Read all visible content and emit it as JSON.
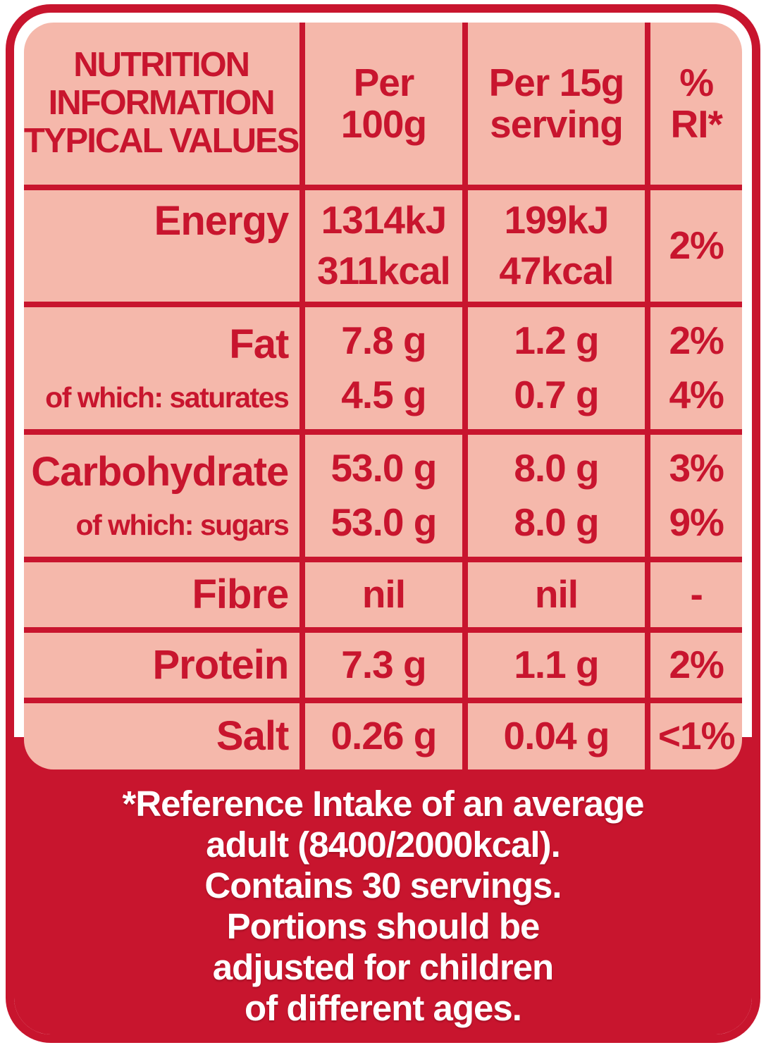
{
  "label": {
    "colors": {
      "red": "#c8152e",
      "pink": "#f5b8ab",
      "text_footer": "#ffffff"
    },
    "header": {
      "col1_lines": [
        "NUTRITION",
        "INFORMATION",
        "TYPICAL VALUES"
      ],
      "col2_lines": [
        "Per",
        "100g"
      ],
      "col3_lines": [
        "Per 15g",
        "serving"
      ],
      "col4_lines": [
        "%",
        "RI*"
      ]
    },
    "rows": [
      {
        "name": "energy",
        "label_lines": [
          "Energy"
        ],
        "per_100g": [
          "1314kJ",
          "311kcal"
        ],
        "per_serving": [
          "199kJ",
          "47kcal"
        ],
        "percent_ri": [
          "2%"
        ]
      },
      {
        "name": "fat",
        "label_lines": [
          "Fat",
          "of which: saturates"
        ],
        "per_100g": [
          "7.8 g",
          "4.5 g"
        ],
        "per_serving": [
          "1.2 g",
          "0.7 g"
        ],
        "percent_ri": [
          "2%",
          "4%"
        ]
      },
      {
        "name": "carbohydrate",
        "label_lines": [
          "Carbohydrate",
          "of which: sugars"
        ],
        "per_100g": [
          "53.0 g",
          "53.0 g"
        ],
        "per_serving": [
          "8.0 g",
          "8.0 g"
        ],
        "percent_ri": [
          "3%",
          "9%"
        ]
      },
      {
        "name": "fibre",
        "label_lines": [
          "Fibre"
        ],
        "per_100g": [
          "nil"
        ],
        "per_serving": [
          "nil"
        ],
        "percent_ri": [
          "-"
        ]
      },
      {
        "name": "protein",
        "label_lines": [
          "Protein"
        ],
        "per_100g": [
          "7.3 g"
        ],
        "per_serving": [
          "1.1 g"
        ],
        "percent_ri": [
          "2%"
        ]
      },
      {
        "name": "salt",
        "label_lines": [
          "Salt"
        ],
        "per_100g": [
          "0.26 g"
        ],
        "per_serving": [
          "0.04 g"
        ],
        "percent_ri": [
          "<1%"
        ]
      }
    ],
    "footnote_lines": [
      "*Reference Intake of an average",
      "adult (8400/2000kcal).",
      "Contains 30 servings.",
      "Portions should be",
      "adjusted for children",
      "of different ages."
    ]
  }
}
